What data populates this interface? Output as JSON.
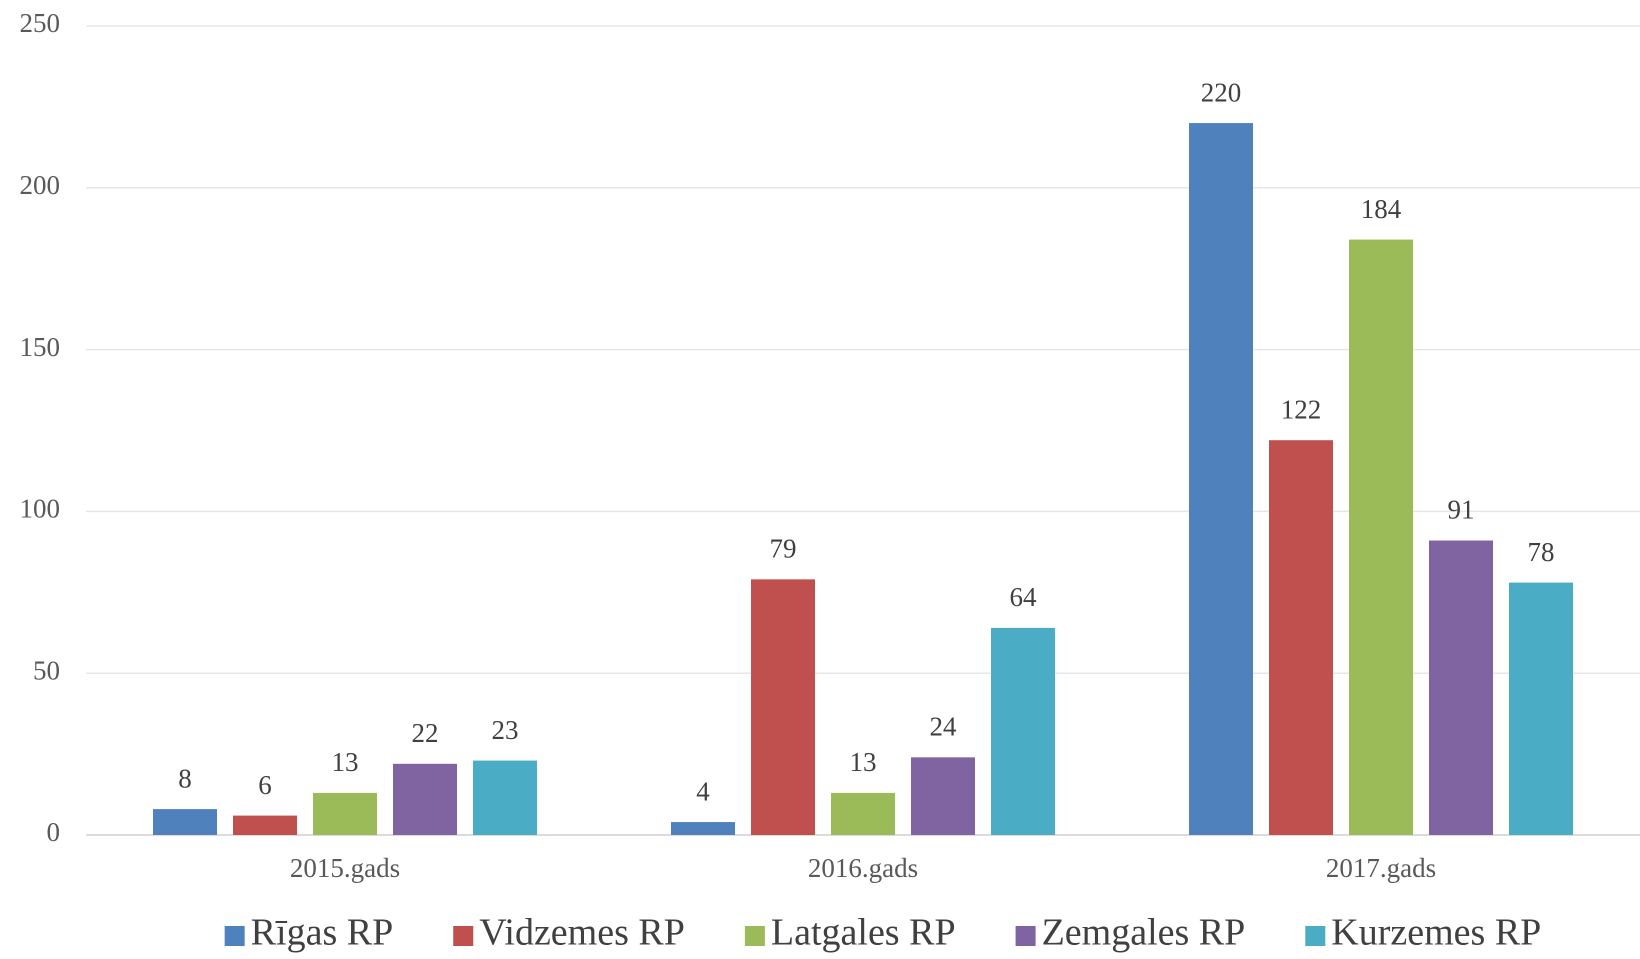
{
  "chart_data": {
    "type": "bar",
    "categories": [
      "2015.gads",
      "2016.gads",
      "2017.gads"
    ],
    "series": [
      {
        "name": "Rīgas RP",
        "color": "#4f81bd",
        "values": [
          8,
          4,
          220
        ]
      },
      {
        "name": "Vidzemes RP",
        "color": "#c0504d",
        "values": [
          6,
          79,
          122
        ]
      },
      {
        "name": "Latgales RP",
        "color": "#9bbb59",
        "values": [
          13,
          13,
          184
        ]
      },
      {
        "name": "Zemgales RP",
        "color": "#8064a2",
        "values": [
          22,
          24,
          91
        ]
      },
      {
        "name": "Kurzemes RP",
        "color": "#4bacc6",
        "values": [
          23,
          64,
          78
        ]
      }
    ],
    "ylim": [
      0,
      250
    ],
    "yticks": [
      0,
      50,
      100,
      150,
      200,
      250
    ],
    "grid": true,
    "legend": "bottom"
  }
}
